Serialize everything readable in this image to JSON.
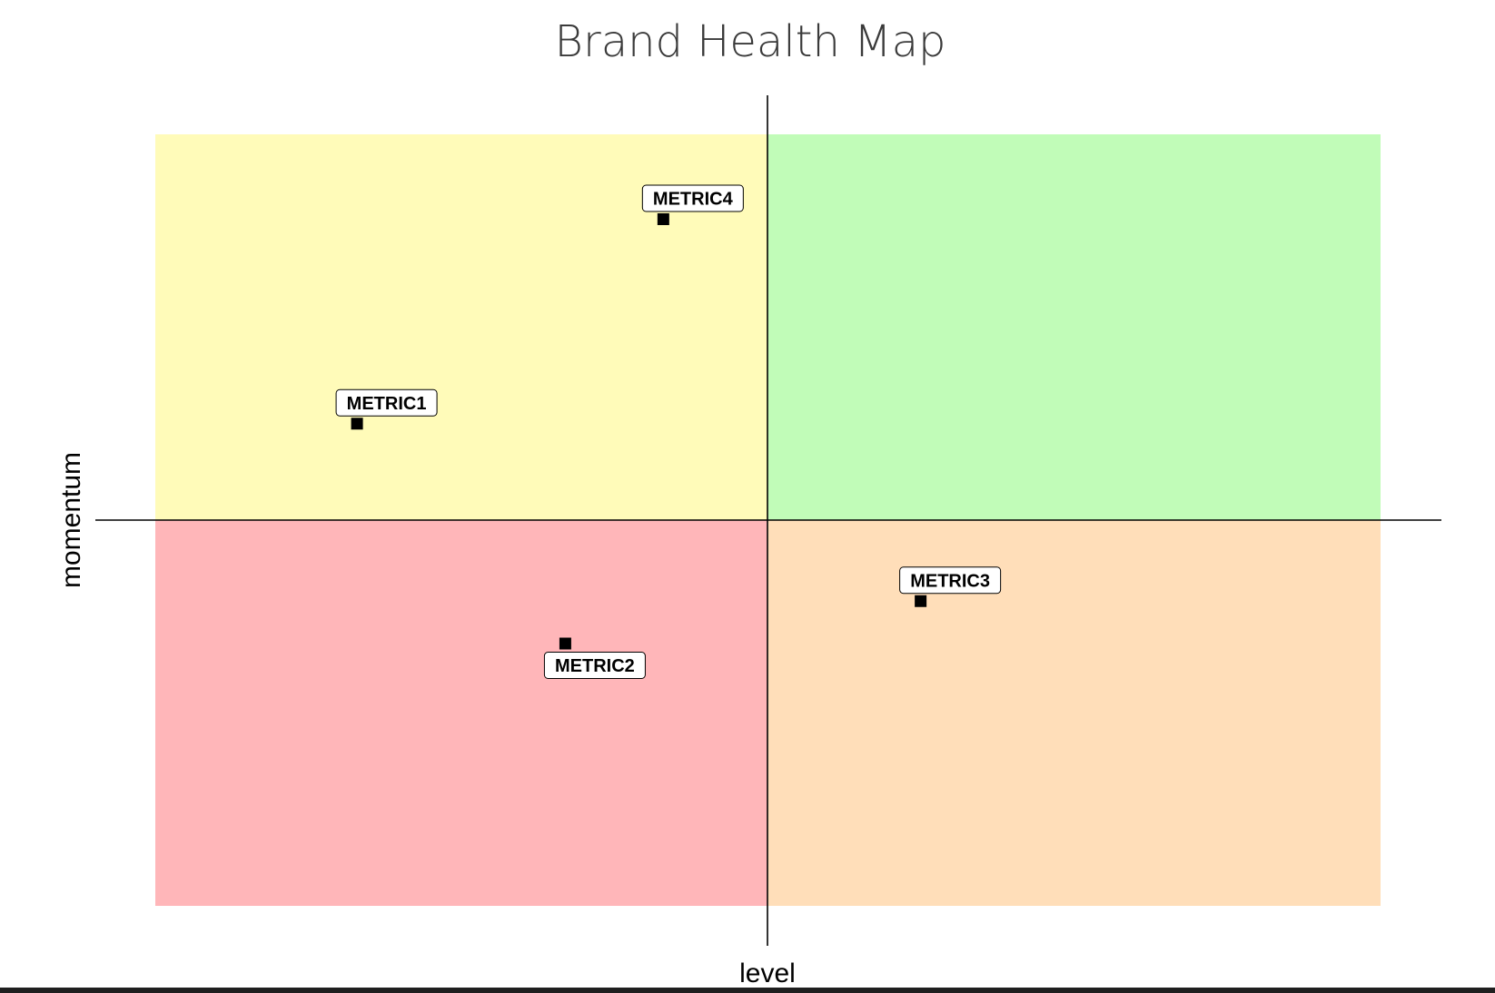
{
  "chart_data": {
    "type": "scatter",
    "title": "Brand Health Map",
    "xlabel": "level",
    "ylabel": "momentum",
    "xlim": [
      -1,
      1
    ],
    "ylim": [
      -1,
      1
    ],
    "grid": false,
    "quadrants": [
      {
        "id": "top-left",
        "color": "#FFFBB9"
      },
      {
        "id": "top-right",
        "color": "#C1FCB8"
      },
      {
        "id": "bottom-left",
        "color": "#FFB6B9"
      },
      {
        "id": "bottom-right",
        "color": "#FFDEB9"
      }
    ],
    "points": [
      {
        "label": "METRIC1",
        "x": -0.67,
        "y": 0.25,
        "label_position": "above"
      },
      {
        "label": "METRIC2",
        "x": -0.33,
        "y": -0.32,
        "label_position": "below"
      },
      {
        "label": "METRIC3",
        "x": 0.25,
        "y": -0.21,
        "label_position": "above"
      },
      {
        "label": "METRIC4",
        "x": -0.17,
        "y": 0.78,
        "label_position": "above"
      }
    ],
    "point_color": "#000000"
  }
}
